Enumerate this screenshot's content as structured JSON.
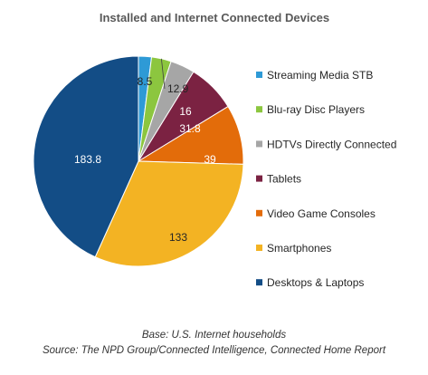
{
  "chart_data": {
    "type": "pie",
    "title": "Installed and Internet Connected Devices",
    "categories": [
      "Streaming Media STB",
      "Blu-ray Disc Players",
      "HDTVs Directly Connected",
      "Tablets",
      "Video Game Consoles",
      "Smartphones",
      "Desktops & Laptops"
    ],
    "values": [
      8.5,
      12.9,
      16,
      31.8,
      39,
      133,
      183.8
    ],
    "data_labels": [
      "8.5",
      "12.9",
      "16",
      "31.8",
      "39",
      "133",
      "183.8"
    ],
    "colors": [
      "#2E9AD6",
      "#8CC63F",
      "#A6A6A6",
      "#7B2242",
      "#E36C0A",
      "#F3B323",
      "#134D86"
    ],
    "legend_position": "right"
  },
  "notes": {
    "base": "Base: U.S. Internet households",
    "source": "Source: The NPD Group/Connected Intelligence, Connected Home Report"
  }
}
